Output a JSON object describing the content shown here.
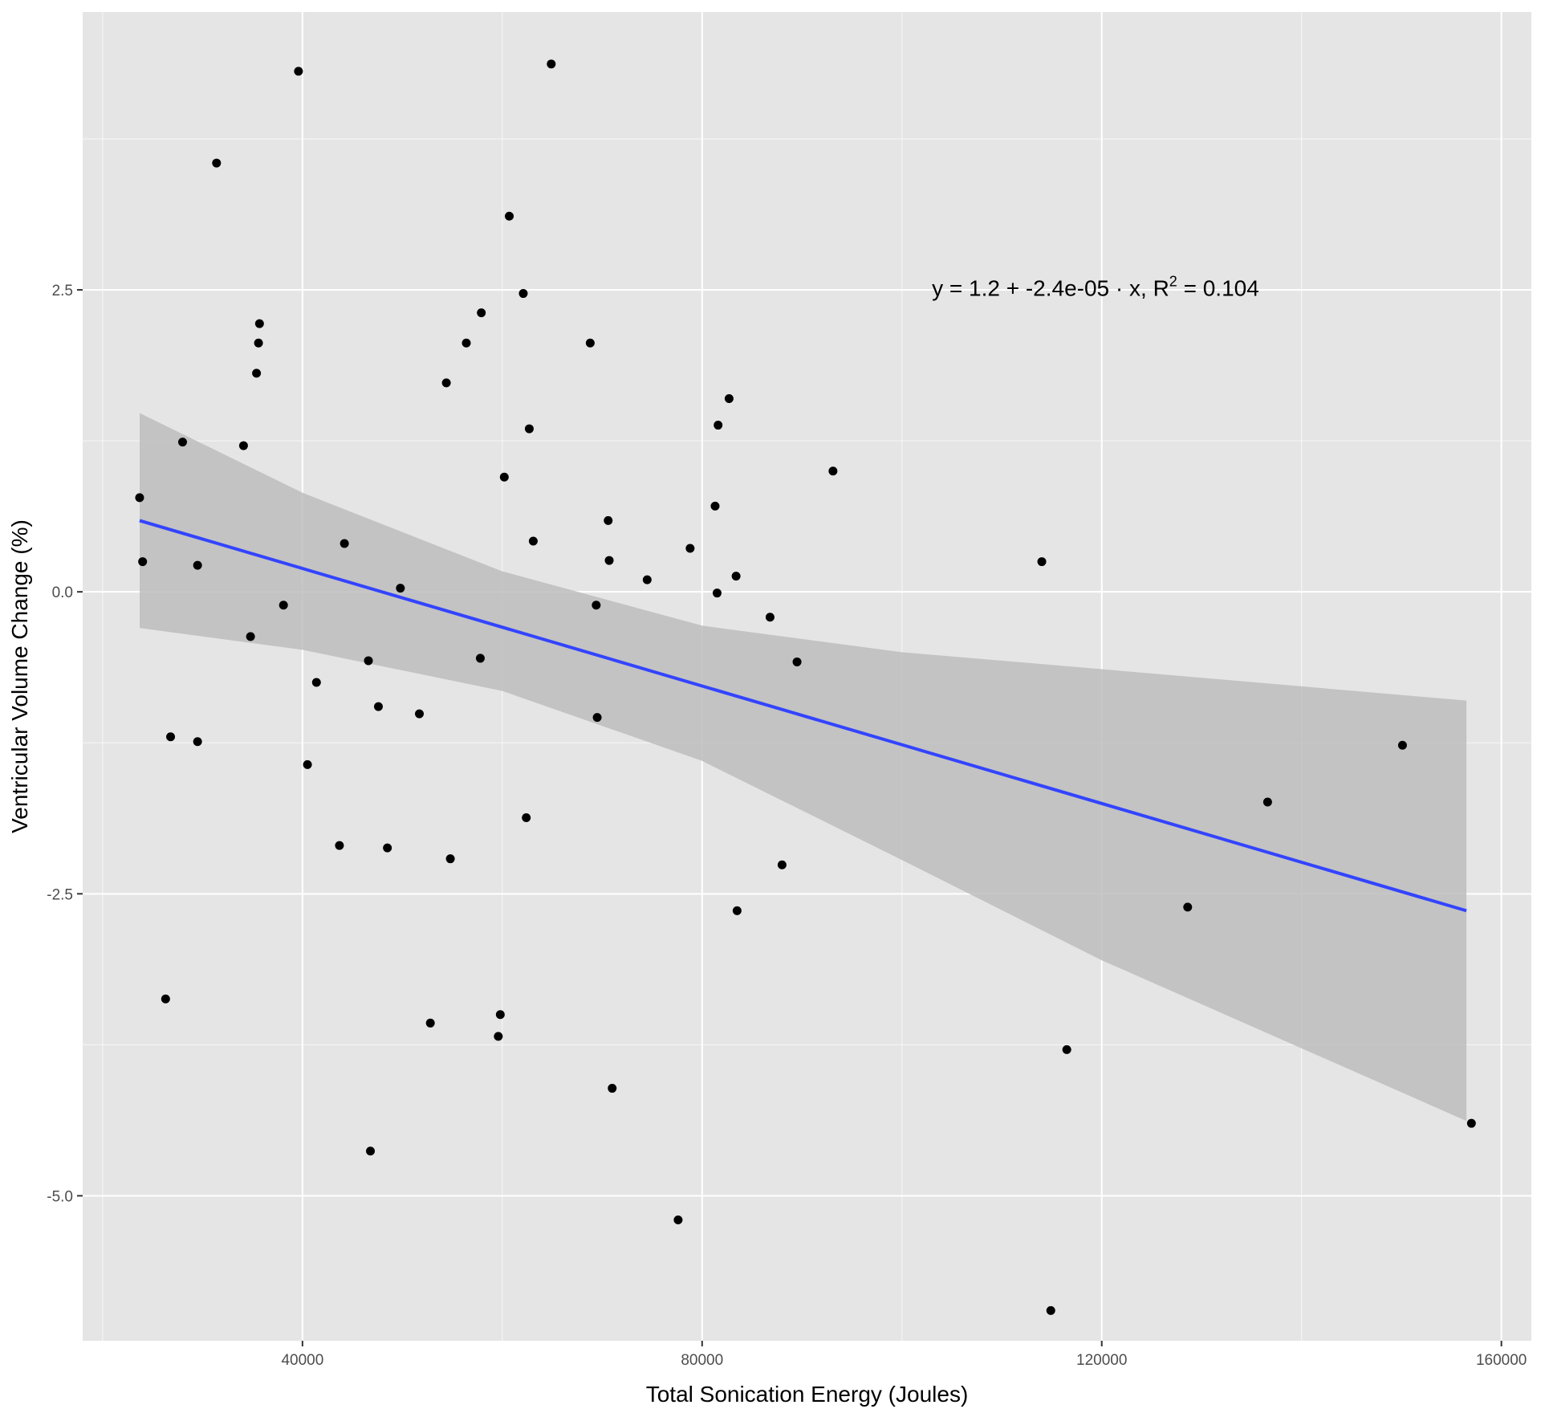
{
  "chart_data": {
    "type": "scatter",
    "xlabel": "Total Sonication Energy (Joules)",
    "ylabel": "Ventricular Volume Change (%)",
    "xlim": [
      18000,
      163000
    ],
    "ylim": [
      -6.2,
      4.8
    ],
    "x_ticks": [
      40000,
      80000,
      120000,
      160000
    ],
    "x_tick_labels": [
      "40000",
      "80000",
      "120000",
      "160000"
    ],
    "y_ticks": [
      -5.0,
      -2.5,
      0.0,
      2.5
    ],
    "y_tick_labels": [
      "-5.0",
      "-2.5",
      "0.0",
      "2.5"
    ],
    "grid": true,
    "legend": "none",
    "colors": {
      "panel_background": "#e5e5e5",
      "grid_major": "#ffffff",
      "points": "#000000",
      "regression_line": "#3344ff",
      "confidence_band": "#bdbdbd"
    },
    "annotation": {
      "prefix": "y = 1.2 + -2.4e-05 · x,  R",
      "sup": "2",
      "suffix": " = 0.104",
      "x": 103000,
      "y": 2.45
    },
    "regression": {
      "intercept": 1.2,
      "slope": -2.4e-05,
      "r_squared": 0.104,
      "x_range": [
        23700,
        156500
      ],
      "line_endpoints": [
        [
          23700,
          0.59
        ],
        [
          156500,
          -2.64
        ]
      ],
      "band_upper": [
        [
          23700,
          1.48
        ],
        [
          40000,
          0.82
        ],
        [
          60000,
          0.17
        ],
        [
          80000,
          -0.28
        ],
        [
          100000,
          -0.5
        ],
        [
          120000,
          -0.64
        ],
        [
          156500,
          -0.9
        ]
      ],
      "band_lower": [
        [
          23700,
          -0.3
        ],
        [
          40000,
          -0.48
        ],
        [
          60000,
          -0.82
        ],
        [
          80000,
          -1.4
        ],
        [
          100000,
          -2.22
        ],
        [
          120000,
          -3.05
        ],
        [
          156500,
          -4.38
        ]
      ]
    },
    "points": [
      [
        23700,
        0.78
      ],
      [
        24000,
        0.25
      ],
      [
        26300,
        -3.37
      ],
      [
        26800,
        -1.2
      ],
      [
        28000,
        1.24
      ],
      [
        29500,
        0.22
      ],
      [
        29500,
        -1.24
      ],
      [
        31400,
        3.55
      ],
      [
        34100,
        1.21
      ],
      [
        34800,
        -0.37
      ],
      [
        35400,
        1.81
      ],
      [
        35600,
        2.06
      ],
      [
        35700,
        2.22
      ],
      [
        38100,
        -0.11
      ],
      [
        39600,
        4.31
      ],
      [
        40500,
        -1.43
      ],
      [
        41400,
        -0.75
      ],
      [
        43700,
        -2.1
      ],
      [
        44200,
        0.4
      ],
      [
        46600,
        -0.57
      ],
      [
        46800,
        -4.63
      ],
      [
        47600,
        -0.95
      ],
      [
        48500,
        -2.12
      ],
      [
        49800,
        0.03
      ],
      [
        51700,
        -1.01
      ],
      [
        52800,
        -3.57
      ],
      [
        54400,
        1.73
      ],
      [
        54800,
        -2.21
      ],
      [
        56400,
        2.06
      ],
      [
        57800,
        -0.55
      ],
      [
        57900,
        2.31
      ],
      [
        59600,
        -3.68
      ],
      [
        59800,
        -3.5
      ],
      [
        60200,
        0.95
      ],
      [
        60700,
        3.11
      ],
      [
        62100,
        2.47
      ],
      [
        62400,
        -1.87
      ],
      [
        62700,
        1.35
      ],
      [
        63100,
        0.42
      ],
      [
        64900,
        4.37
      ],
      [
        68800,
        2.06
      ],
      [
        69400,
        -0.11
      ],
      [
        69500,
        -1.04
      ],
      [
        70600,
        0.59
      ],
      [
        70700,
        0.26
      ],
      [
        71000,
        -4.11
      ],
      [
        74500,
        0.1
      ],
      [
        77600,
        -5.2
      ],
      [
        78800,
        0.36
      ],
      [
        81300,
        0.71
      ],
      [
        81500,
        -0.01
      ],
      [
        81600,
        1.38
      ],
      [
        82700,
        1.6
      ],
      [
        83400,
        0.13
      ],
      [
        83500,
        -2.64
      ],
      [
        86800,
        -0.21
      ],
      [
        88000,
        -2.26
      ],
      [
        89500,
        -0.58
      ],
      [
        93100,
        1.0
      ],
      [
        114000,
        0.25
      ],
      [
        114900,
        -5.95
      ],
      [
        116500,
        -3.79
      ],
      [
        128600,
        -2.61
      ],
      [
        136600,
        -1.74
      ],
      [
        150100,
        -1.27
      ],
      [
        157000,
        -4.4
      ]
    ]
  }
}
